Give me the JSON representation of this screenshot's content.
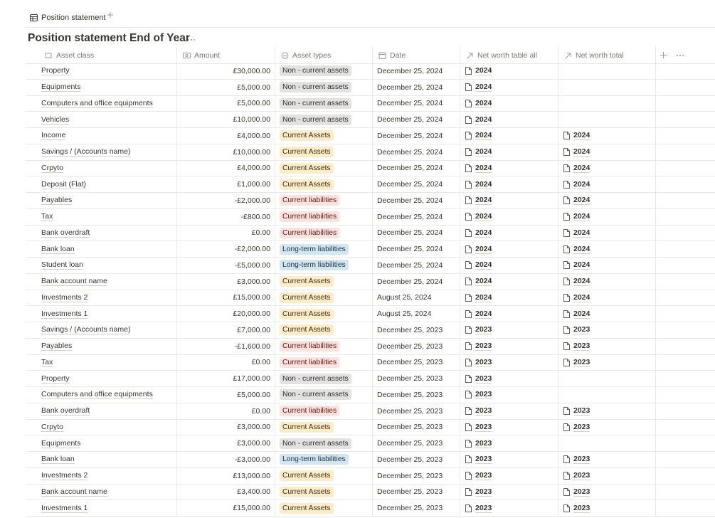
{
  "tab": "Position statement",
  "title": "Position statement End of Year",
  "columns": [
    "Asset class",
    "Amount",
    "Asset types",
    "Date",
    "Net worth table all",
    "Net worth total"
  ],
  "tag_colors": {
    "Non - current assets": [
      "#e3e2e0",
      "#32302c"
    ],
    "Current Assets": [
      "#fdecc8",
      "#402c1b"
    ],
    "Current liabilities": [
      "#ffe2dd",
      "#5d1715"
    ],
    "Long-term liabilities": [
      "#d3e5ef",
      "#183347"
    ]
  },
  "rows": [
    [
      "Property",
      "£30,000.00",
      "Non - current assets",
      "December 25, 2024",
      "2024",
      null
    ],
    [
      "Equipments",
      "£5,000.00",
      "Non - current assets",
      "December 25, 2024",
      "2024",
      null
    ],
    [
      "Computers and office equipments",
      "£5,000.00",
      "Non - current assets",
      "December 25, 2024",
      "2024",
      null
    ],
    [
      "Vehicles",
      "£10,000.00",
      "Non - current assets",
      "December 25, 2024",
      "2024",
      null
    ],
    [
      "Income",
      "£4,000.00",
      "Current Assets",
      "December 25, 2024",
      "2024",
      "2024"
    ],
    [
      "Savings / (Accounts name)",
      "£10,000.00",
      "Current Assets",
      "December 25, 2024",
      "2024",
      "2024"
    ],
    [
      "Crpyto",
      "£4,000.00",
      "Current Assets",
      "December 25, 2024",
      "2024",
      "2024"
    ],
    [
      "Deposit (Flat)",
      "£1,000.00",
      "Current Assets",
      "December 25, 2024",
      "2024",
      "2024"
    ],
    [
      "Payables",
      "-£2,000.00",
      "Current liabilities",
      "December 25, 2024",
      "2024",
      "2024"
    ],
    [
      "Tax",
      "-£800.00",
      "Current liabilities",
      "December 25, 2024",
      "2024",
      "2024"
    ],
    [
      "Bank overdraft",
      "£0.00",
      "Current liabilities",
      "December 25, 2024",
      "2024",
      "2024"
    ],
    [
      "Bank loan",
      "-£2,000.00",
      "Long-term liabilities",
      "December 25, 2024",
      "2024",
      "2024"
    ],
    [
      "Student loan",
      "-£5,000.00",
      "Long-term liabilities",
      "December 25, 2024",
      "2024",
      "2024"
    ],
    [
      "Bank account name",
      "£3,000.00",
      "Current Assets",
      "December 25, 2024",
      "2024",
      "2024"
    ],
    [
      "Investments 2",
      "£15,000.00",
      "Current Assets",
      "August 25, 2024",
      "2024",
      "2024"
    ],
    [
      "Investments 1",
      "£20,000.00",
      "Current Assets",
      "August 25, 2024",
      "2024",
      "2024"
    ],
    [
      "Savings / (Accounts name)",
      "£7,000.00",
      "Current Assets",
      "December 25, 2023",
      "2023",
      "2023"
    ],
    [
      "Payables",
      "-£1,600.00",
      "Current liabilities",
      "December 25, 2023",
      "2023",
      "2023"
    ],
    [
      "Tax",
      "£0.00",
      "Current liabilities",
      "December 25, 2023",
      "2023",
      "2023"
    ],
    [
      "Property",
      "£17,000.00",
      "Non - current assets",
      "December 25, 2023",
      "2023",
      null
    ],
    [
      "Computers and office equipments",
      "£5,000.00",
      "Non - current assets",
      "December 25, 2023",
      "2023",
      null
    ],
    [
      "Bank overdraft",
      "£0.00",
      "Current liabilities",
      "December 25, 2023",
      "2023",
      "2023"
    ],
    [
      "Crpyto",
      "£3,000.00",
      "Current Assets",
      "December 25, 2023",
      "2023",
      "2023"
    ],
    [
      "Equipments",
      "£3,000.00",
      "Non - current assets",
      "December 25, 2023",
      "2023",
      null
    ],
    [
      "Bank loan",
      "-£3,000.00",
      "Long-term liabilities",
      "December 25, 2023",
      "2023",
      "2023"
    ],
    [
      "Investments 2",
      "£13,000.00",
      "Current Assets",
      "December 25, 2023",
      "2023",
      "2023"
    ],
    [
      "Bank account name",
      "£3,400.00",
      "Current Assets",
      "December 25, 2023",
      "2023",
      "2023"
    ],
    [
      "Investments 1",
      "£15,000.00",
      "Current Assets",
      "December 25, 2023",
      "2023",
      "2023"
    ]
  ]
}
